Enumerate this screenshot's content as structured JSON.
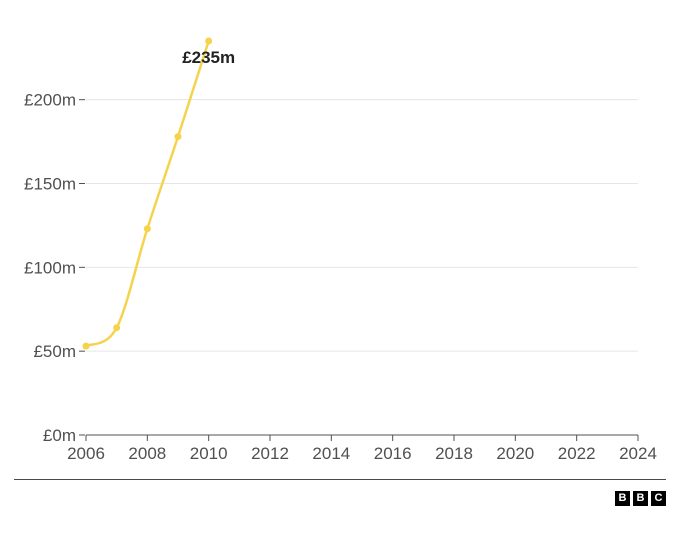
{
  "chart_data": {
    "type": "line",
    "x": [
      2006,
      2007,
      2008,
      2009,
      2010
    ],
    "series": [
      {
        "values": [
          53,
          64,
          123,
          178,
          235
        ]
      }
    ],
    "data_labels": [
      {
        "x": 2010,
        "text": "£235m"
      }
    ],
    "xlim": [
      2006,
      2024
    ],
    "ylim": [
      0,
      235
    ],
    "x_ticks": [
      "2006",
      "2008",
      "2010",
      "2012",
      "2014",
      "2016",
      "2018",
      "2020",
      "2022",
      "2024"
    ],
    "y_ticks": [
      "£0m",
      "£50m",
      "£100m",
      "£150m",
      "£200m"
    ],
    "y_tick_values": [
      0,
      50,
      100,
      150,
      200
    ],
    "grid": "horizontal",
    "colors": {
      "line": "#f5d34d",
      "grid": "#e6e6e6",
      "axis": "#505050"
    }
  },
  "footer": {
    "logo_letters": [
      "B",
      "B",
      "C"
    ]
  }
}
